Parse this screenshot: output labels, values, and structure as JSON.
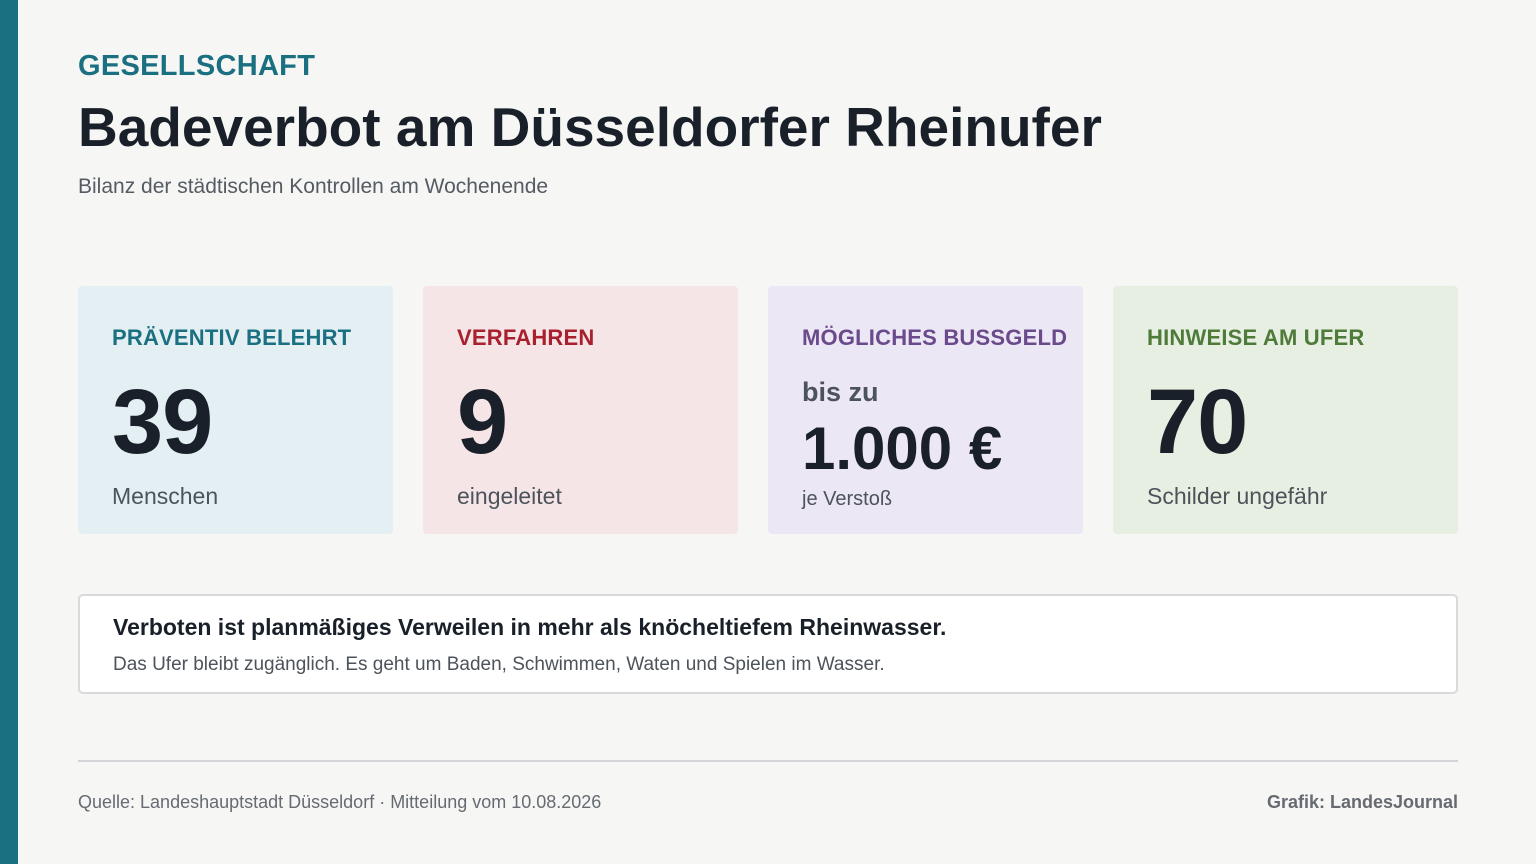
{
  "colors": {
    "accent": "#1a7080",
    "teal": "#1a7080",
    "red": "#a8202e",
    "purple": "#6b4a8c",
    "green": "#4e7a3a"
  },
  "header": {
    "eyebrow": "GESELLSCHAFT",
    "title": "Badeverbot am Düsseldorfer Rheinufer",
    "subtitle": "Bilanz der städtischen Kontrollen am Wochenende"
  },
  "cards": [
    {
      "label": "PRÄVENTIV BELEHRT",
      "value": "39",
      "unit": "Menschen",
      "label_color": "#1a7080",
      "background": "#e3eff2"
    },
    {
      "label": "VERFAHREN",
      "value": "9",
      "unit": "eingeleitet",
      "label_color": "#a8202e",
      "background": "#f6e5e7"
    },
    {
      "label": "MÖGLICHES BUSSGELD",
      "prefix": "bis zu",
      "value": "1.000 €",
      "unit": "je Verstoß",
      "label_color": "#6b4a8c",
      "background": "#ebe7f5"
    },
    {
      "label": "HINWEISE AM UFER",
      "value": "70",
      "unit": "Schilder ungefähr",
      "label_color": "#4e7a3a",
      "background": "#e7eee2"
    }
  ],
  "note": {
    "headline": "Verboten ist planmäßiges Verweilen in mehr als knöcheltiefem Rheinwasser.",
    "body": "Das Ufer bleibt zugänglich. Es geht um Baden, Schwimmen, Waten und Spielen im Wasser."
  },
  "footer": {
    "source": "Quelle: Landeshauptstadt Düsseldorf · Mitteilung vom 10.08.2026",
    "credit": "Grafik: LandesJournal"
  }
}
